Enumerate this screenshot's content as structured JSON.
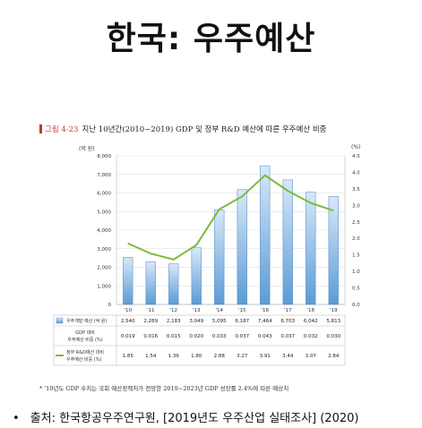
{
  "page_title": "한국: 우주예산",
  "figure": {
    "number": "그림 4-23",
    "caption": "지난 10년간(2010~2019) GDP 및 정부 R&D 예산에 따른 우주예산 비중",
    "footnote": "* '19년도 GDP 수치는 국회 예산정책처가 전망한 2019~2023년 GDP 성장률 2.4%에 따른 예상치"
  },
  "source": {
    "bullet": "•",
    "text": "출처: 한국항공우주연구원, [2019년도 우주산업 실태조사] (2020)"
  },
  "chart_data": {
    "type": "bar",
    "categories": [
      "'10",
      "'11",
      "'12",
      "'13",
      "'14",
      "'15",
      "'16",
      "'17",
      "'18",
      "'19"
    ],
    "left_axis": {
      "unit": "(억 원)",
      "ylim": [
        0,
        8000
      ],
      "ticks": [
        "0",
        "1,000",
        "2,000",
        "3,000",
        "4,000",
        "5,000",
        "6,000",
        "7,000",
        "8,000"
      ]
    },
    "right_axis": {
      "unit": "(%)",
      "ylim": [
        0,
        4.5
      ],
      "ticks": [
        "0.0",
        "0.5",
        "1.0",
        "1.5",
        "2.0",
        "2.5",
        "3.0",
        "3.5",
        "4.0",
        "4.5"
      ]
    },
    "series": [
      {
        "name": "우주개발 예산 (억 원)",
        "kind": "bar",
        "axis": "left",
        "values": [
          2540,
          2289,
          2183,
          3049,
          5095,
          6187,
          7464,
          6703,
          6042,
          5813
        ],
        "labels": [
          "2,540",
          "2,289",
          "2,183",
          "3,049",
          "5,095",
          "6,187",
          "7,464",
          "6,703",
          "6,042",
          "5,813"
        ]
      },
      {
        "name": "GDP 대비 우주예산 비중 (%)",
        "kind": "table-only",
        "values": [
          0.019,
          0.016,
          0.015,
          0.02,
          0.033,
          0.037,
          0.043,
          0.037,
          0.032,
          0.03
        ],
        "labels": [
          "0.019",
          "0.016",
          "0.015",
          "0.020",
          "0.033",
          "0.037",
          "0.043",
          "0.037",
          "0.032",
          "0.030"
        ]
      },
      {
        "name": "정부 R&D예산 대비 우주예산 비중 (%)",
        "kind": "line",
        "axis": "right",
        "values": [
          1.85,
          1.54,
          1.36,
          1.8,
          2.88,
          3.27,
          3.91,
          3.44,
          3.07,
          2.84
        ],
        "labels": [
          "1.85",
          "1.54",
          "1.36",
          "1.80",
          "2.88",
          "3.27",
          "3.91",
          "3.44",
          "3.07",
          "2.84"
        ]
      }
    ],
    "table_row_labels": [
      [
        "우주개발 예산 (억 원)"
      ],
      [
        "GDP 대비",
        "우주예산 비중 (%)"
      ],
      [
        "정부 R&D예산 대비",
        "우주예산 비중 (%)"
      ]
    ],
    "colors": {
      "bar_fill_top": "#d8e8f8",
      "bar_fill_bottom": "#5b9bd5",
      "bar_stroke": "#4a86c5",
      "line": "#7cba3c",
      "grid": "#d9d9d9",
      "table_border": "#bfbfbf"
    },
    "grid": true
  }
}
